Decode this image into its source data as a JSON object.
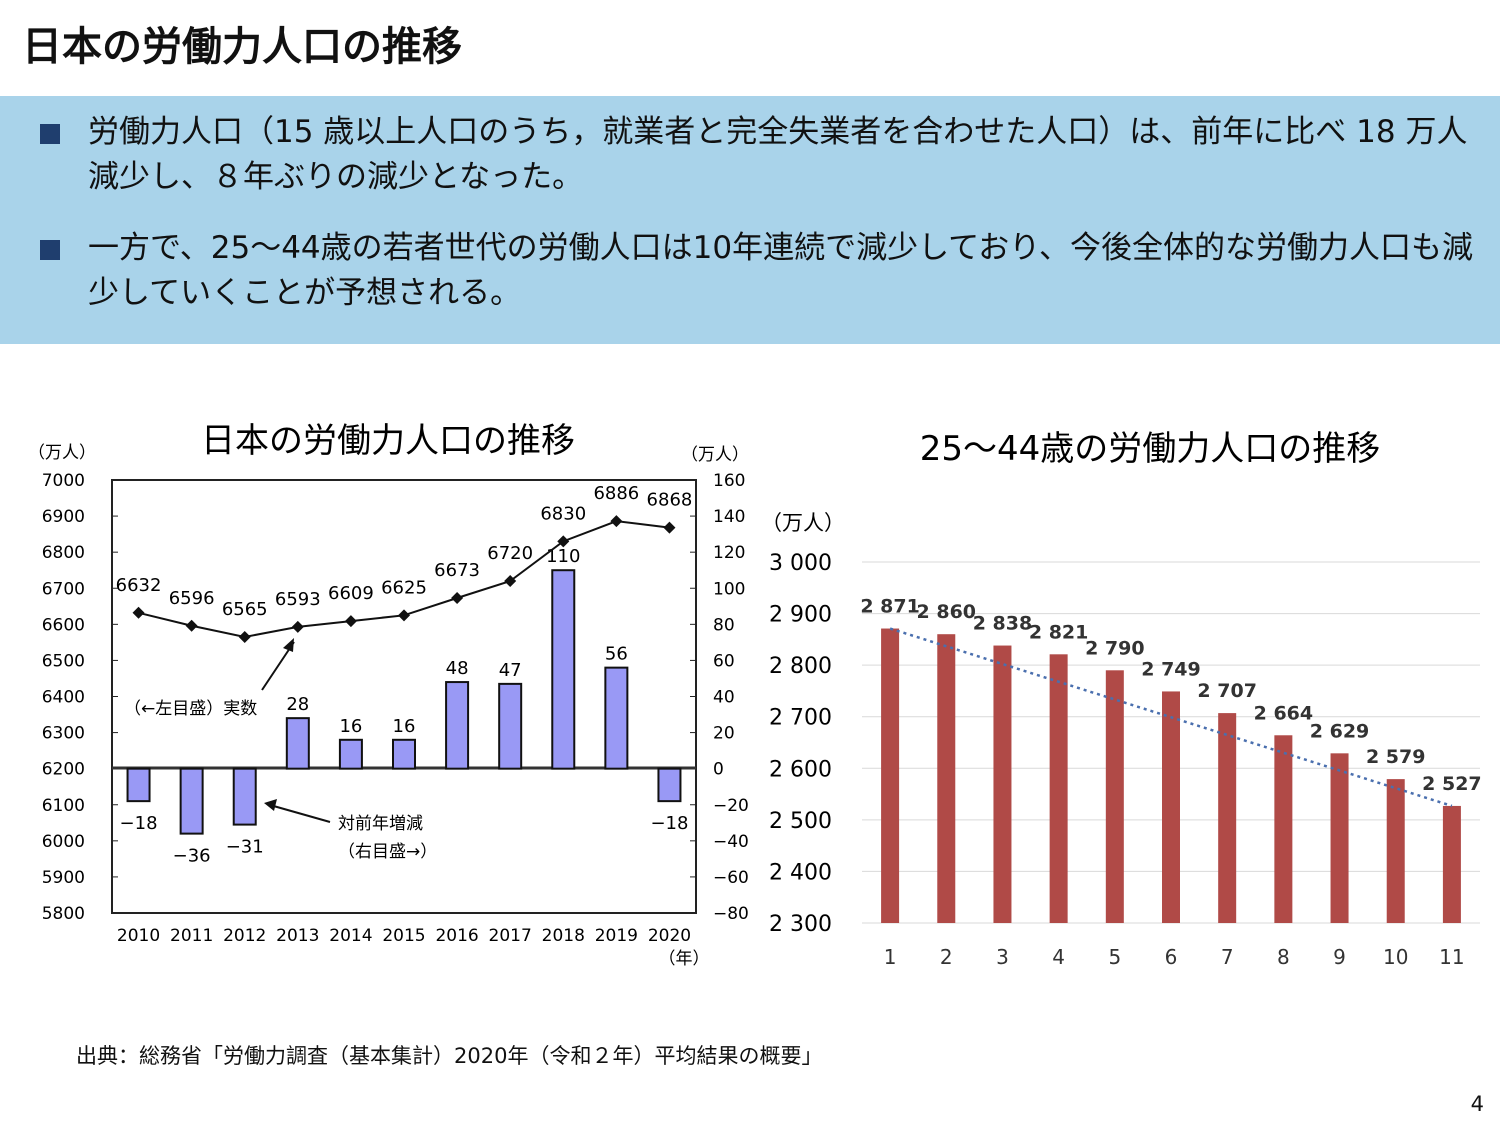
{
  "slide": {
    "title": "日本の労働力人口の推移",
    "bullets": [
      "労働力人口（15 歳以上人口のうち，就業者と完全失業者を合わせた人口）は、前年に比べ 18 万人減少し、８年ぶりの減少となった。",
      "一方で、25〜44歳の若者世代の労働人口は10年連続で減少しており、今後全体的な労働力人口も減少していくことが予想される。"
    ],
    "source": "出典：総務省「労働力調査（基本集計）2020年（令和２年）平均結果の概要」",
    "page_number": "4"
  },
  "colors": {
    "summary_background": "#a9d3ea",
    "bullet_marker": "#1f3e6e",
    "left_bar": "#9999f5",
    "right_bar": "#b04a47",
    "trend_line": "#4a6fae"
  },
  "chart_data": [
    {
      "type": "bar+line",
      "title": "日本の労働力人口の推移",
      "y_left_unit": "（万人）",
      "y_right_unit": "（万人）",
      "x_unit": "（年）",
      "categories": [
        "2010",
        "2011",
        "2012",
        "2013",
        "2014",
        "2015",
        "2016",
        "2017",
        "2018",
        "2019",
        "2020"
      ],
      "line_series": {
        "values": [
          6632,
          6596,
          6565,
          6593,
          6609,
          6625,
          6673,
          6720,
          6830,
          6886,
          6868
        ]
      },
      "bar_series": {
        "values": [
          -18,
          -36,
          -31,
          28,
          16,
          16,
          48,
          47,
          110,
          56,
          -18
        ]
      },
      "ylim_left": [
        5800,
        7000
      ],
      "yticks_left": [
        7000,
        6900,
        6800,
        6700,
        6600,
        6500,
        6400,
        6300,
        6200,
        6100,
        6000,
        5900,
        5800
      ],
      "ylim_right": [
        -80,
        160
      ],
      "yticks_right": [
        "160",
        "140",
        "120",
        "100",
        "80",
        "60",
        "40",
        "20",
        "0",
        "−20",
        "−40",
        "−60",
        "−80"
      ],
      "annotations": [
        {
          "text": "（←左目盛）実数"
        },
        {
          "text": "対前年増減"
        },
        {
          "text": "（右目盛→）"
        }
      ]
    },
    {
      "type": "bar",
      "title": "25〜44歳の労働力人口の推移",
      "ylabel": "（万人）",
      "categories": [
        "1",
        "2",
        "3",
        "4",
        "5",
        "6",
        "7",
        "8",
        "9",
        "10",
        "11"
      ],
      "values": [
        2871,
        2860,
        2838,
        2821,
        2790,
        2749,
        2707,
        2664,
        2629,
        2579,
        2527
      ],
      "data_labels": [
        "2 871",
        "2 860",
        "2 838",
        "2 821",
        "2 790",
        "2 749",
        "2 707",
        "2 664",
        "2 629",
        "2 579",
        "2 527"
      ],
      "ylim": [
        2300,
        3000
      ],
      "yticks": [
        "3 000",
        "2 900",
        "2 800",
        "2 700",
        "2 600",
        "2 500",
        "2 400",
        "2 300"
      ],
      "trendline": "linear-dotted",
      "grid": true
    }
  ]
}
